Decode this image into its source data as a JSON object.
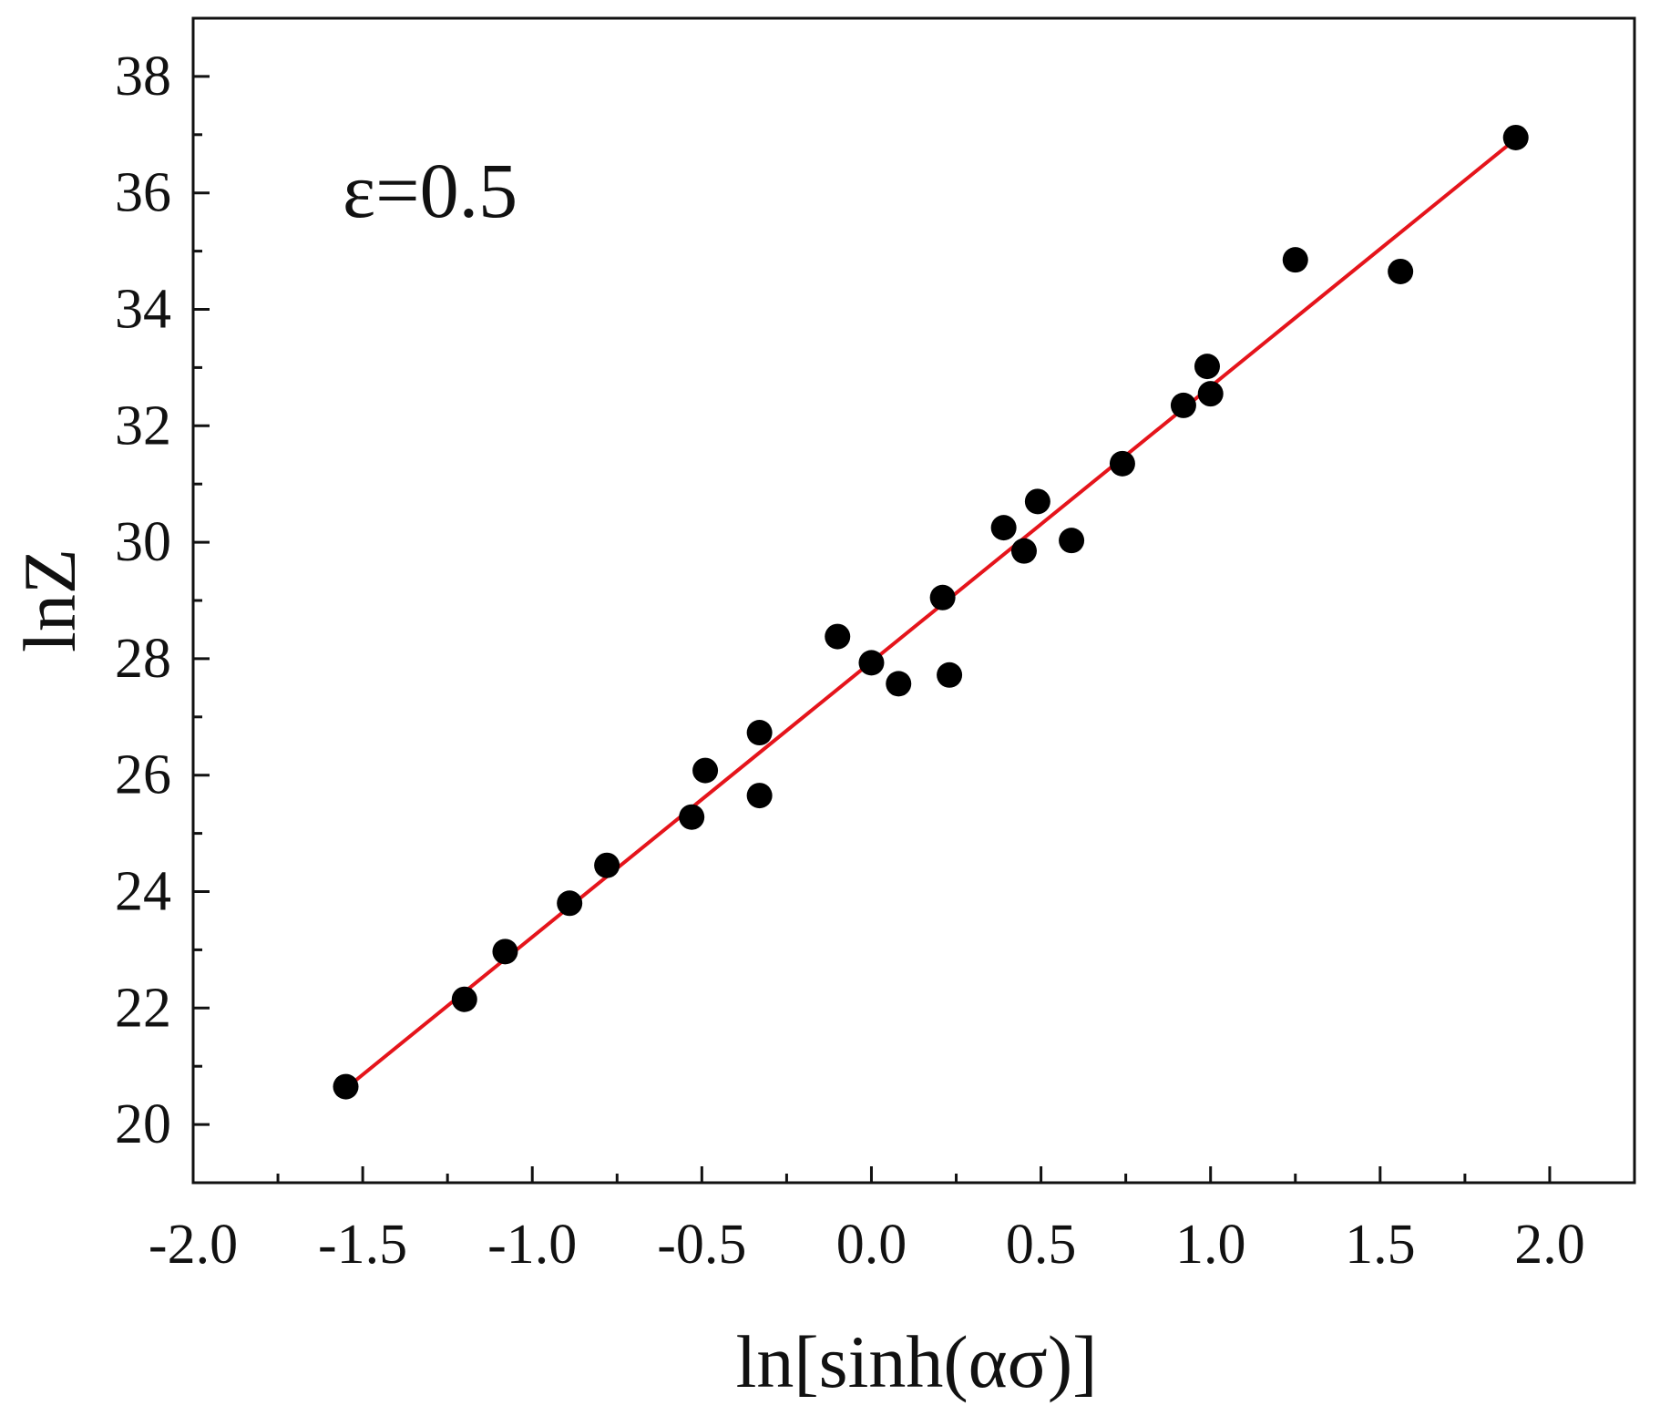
{
  "chart_data": {
    "type": "scatter",
    "annotation": "ε=0.5",
    "xlabel": "ln[sinh(ασ)]",
    "ylabel": "lnZ",
    "xlim": [
      -2.0,
      2.25
    ],
    "ylim": [
      19,
      39
    ],
    "xticks": [
      -2.0,
      -1.5,
      -1.0,
      -0.5,
      0.0,
      0.5,
      1.0,
      1.5,
      2.0
    ],
    "xtick_labels": [
      "-2.0",
      "-1.5",
      "-1.0",
      "-0.5",
      "0.0",
      "0.5",
      "1.0",
      "1.5",
      "2.0"
    ],
    "yticks": [
      20,
      22,
      24,
      26,
      28,
      30,
      32,
      34,
      36,
      38
    ],
    "ytick_labels": [
      "20",
      "22",
      "24",
      "26",
      "28",
      "30",
      "32",
      "34",
      "36",
      "38"
    ],
    "grid": false,
    "points": [
      [
        -1.55,
        20.65
      ],
      [
        -1.2,
        22.15
      ],
      [
        -1.08,
        22.97
      ],
      [
        -0.89,
        23.8
      ],
      [
        -0.78,
        24.45
      ],
      [
        -0.53,
        25.28
      ],
      [
        -0.49,
        26.08
      ],
      [
        -0.33,
        26.73
      ],
      [
        -0.33,
        25.65
      ],
      [
        -0.1,
        28.38
      ],
      [
        0.0,
        27.93
      ],
      [
        0.08,
        27.57
      ],
      [
        0.21,
        29.05
      ],
      [
        0.23,
        27.72
      ],
      [
        0.39,
        30.25
      ],
      [
        0.45,
        29.85
      ],
      [
        0.49,
        30.7
      ],
      [
        0.59,
        30.03
      ],
      [
        0.74,
        31.35
      ],
      [
        0.92,
        32.35
      ],
      [
        0.99,
        33.02
      ],
      [
        1.0,
        32.55
      ],
      [
        1.25,
        34.85
      ],
      [
        1.56,
        34.65
      ],
      [
        1.9,
        36.95
      ]
    ],
    "fit_line": {
      "x": [
        -1.55,
        1.89
      ],
      "y": [
        20.62,
        36.88
      ]
    },
    "colors": {
      "points": "#000000",
      "fit_line": "#e5141b",
      "axes": "#111111"
    }
  }
}
